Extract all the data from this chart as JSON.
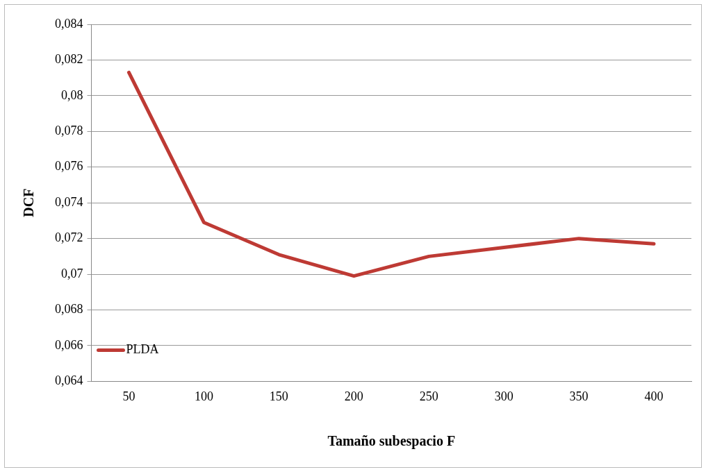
{
  "chart_data": {
    "type": "line",
    "xlabel": "Tamaño subespacio F",
    "ylabel": "DCF",
    "categories": [
      "50",
      "100",
      "150",
      "200",
      "250",
      "300",
      "350",
      "400"
    ],
    "series": [
      {
        "name": "PLDA",
        "color": "#be3a34",
        "values": [
          0.0813,
          0.0729,
          0.0711,
          0.0699,
          0.071,
          0.0715,
          0.072,
          0.0717
        ]
      }
    ],
    "ylim": [
      0.064,
      0.084
    ],
    "yticks": [
      {
        "value": 0.064,
        "label": "0,064"
      },
      {
        "value": 0.066,
        "label": "0,066"
      },
      {
        "value": 0.068,
        "label": "0,068"
      },
      {
        "value": 0.07,
        "label": "0,07"
      },
      {
        "value": 0.072,
        "label": "0,072"
      },
      {
        "value": 0.074,
        "label": "0,074"
      },
      {
        "value": 0.076,
        "label": "0,076"
      },
      {
        "value": 0.078,
        "label": "0,078"
      },
      {
        "value": 0.08,
        "label": "0,08"
      },
      {
        "value": 0.082,
        "label": "0,082"
      },
      {
        "value": 0.084,
        "label": "0,084"
      }
    ],
    "grid": "y",
    "legend": "bottom left",
    "marker": "none",
    "line_style": "solid"
  }
}
